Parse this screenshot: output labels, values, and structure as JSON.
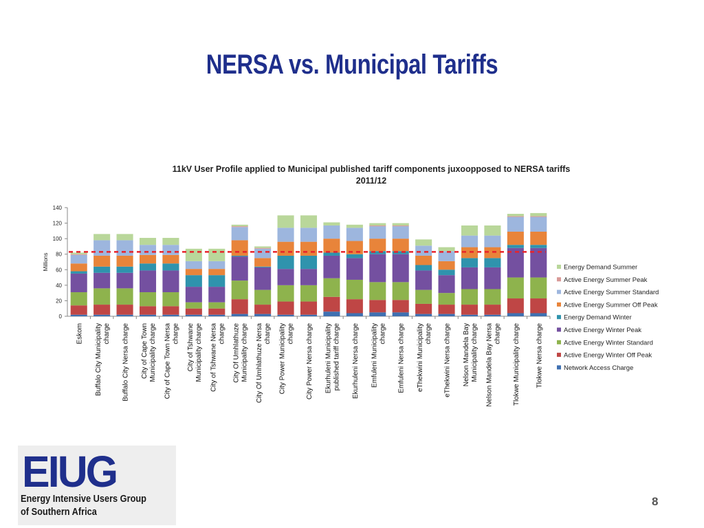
{
  "slide": {
    "title": "NERSA vs. Municipal Tariffs",
    "page_number": "8"
  },
  "logo": {
    "mark": "EIUG",
    "line1": "Energy Intensive Users Group",
    "line2": "of Southern Africa"
  },
  "chart_data": {
    "type": "bar",
    "stacked": true,
    "title": "11kV  User Profile  applied to Municipal published tariff components juxoopposed to NERSA tariffs",
    "subtitle": "2011/12",
    "ylabel": "Millions",
    "xlabel": "",
    "ylim": [
      0,
      140
    ],
    "yticks": [
      0,
      20,
      40,
      60,
      80,
      100,
      120,
      140
    ],
    "grid": false,
    "legend_position": "right",
    "reference_line": {
      "value": 83,
      "style": "dashed",
      "color": "#e8232a"
    },
    "categories": [
      "Eskom",
      "Buffalo City Municipality charge",
      "Buffalo City Nersa charge",
      "City of Cape Town Municipality charge",
      "City of Cape Town Nersa charge",
      "City of Tshwane Municipality charge",
      "City of Tshwane Nersa charge",
      "City Of Umhlathuze Municipality charge",
      "City Of Umhlathuze Nersa charge",
      "City Power Municipality charge",
      "City Power Nersa charge",
      "Ekurhuleni Municipality published tariff charge",
      "Ekurhuleni Nersa charge",
      "Emfuleni Municipality charge",
      "Emfuleni Nersa charge",
      "eThekwini Municipality charge",
      "eThekwini Nersa charge",
      "Nelson Mandela Bay Municipality charge",
      "Nelson Mandela Bay Nersa charge",
      "Tlokwe Municipality charge",
      "Tlokwe Nersa charge"
    ],
    "series": [
      {
        "name": "Network Access Charge",
        "color": "#3f70b1",
        "values": [
          2,
          2,
          2,
          2,
          2,
          2,
          2,
          3,
          3,
          2,
          2,
          6,
          4,
          5,
          5,
          3,
          3,
          2,
          2,
          4,
          4
        ]
      },
      {
        "name": "Active Energy Winter Off Peak",
        "color": "#bf4645",
        "values": [
          12,
          13,
          13,
          11,
          11,
          8,
          8,
          19,
          12,
          17,
          17,
          19,
          18,
          16,
          16,
          13,
          12,
          13,
          13,
          19,
          19
        ]
      },
      {
        "name": "Active Energy Winter Standard",
        "color": "#8eb34d",
        "values": [
          17,
          21,
          21,
          18,
          18,
          8,
          8,
          24,
          19,
          21,
          21,
          24,
          25,
          23,
          23,
          18,
          15,
          20,
          20,
          27,
          27
        ]
      },
      {
        "name": "Active Energy Winter Peak",
        "color": "#7450a0",
        "values": [
          24,
          20,
          20,
          28,
          28,
          20,
          20,
          31,
          29,
          21,
          21,
          29,
          28,
          36,
          36,
          25,
          23,
          28,
          28,
          38,
          38
        ]
      },
      {
        "name": "Energy Demand Winter",
        "color": "#2f93ad",
        "values": [
          3,
          8,
          8,
          9,
          9,
          15,
          15,
          1,
          1,
          17,
          17,
          4,
          5,
          4,
          4,
          7,
          7,
          12,
          12,
          4,
          4
        ]
      },
      {
        "name": "Active Energy Summer Off Peak",
        "color": "#e8843a",
        "values": [
          10,
          14,
          14,
          11,
          11,
          8,
          8,
          20,
          11,
          18,
          18,
          18,
          17,
          16,
          16,
          12,
          11,
          14,
          14,
          17,
          17
        ]
      },
      {
        "name": "Active Energy Summer Standard",
        "color": "#9db6de",
        "values": [
          11,
          20,
          20,
          13,
          13,
          10,
          10,
          17,
          12,
          18,
          18,
          17,
          17,
          16,
          16,
          13,
          13,
          15,
          15,
          19,
          19
        ]
      },
      {
        "name": "Active Energy Summer Peak",
        "color": "#d89997",
        "values": [
          1,
          0,
          0,
          0,
          0,
          0,
          0,
          1,
          1,
          0,
          0,
          0,
          0,
          1,
          1,
          0,
          0,
          0,
          0,
          1,
          1
        ]
      },
      {
        "name": "Energy Demand Summer",
        "color": "#b9d79a",
        "values": [
          2,
          8,
          8,
          9,
          9,
          16,
          16,
          2,
          2,
          16,
          16,
          4,
          4,
          3,
          3,
          8,
          5,
          13,
          13,
          3,
          4
        ]
      }
    ]
  }
}
